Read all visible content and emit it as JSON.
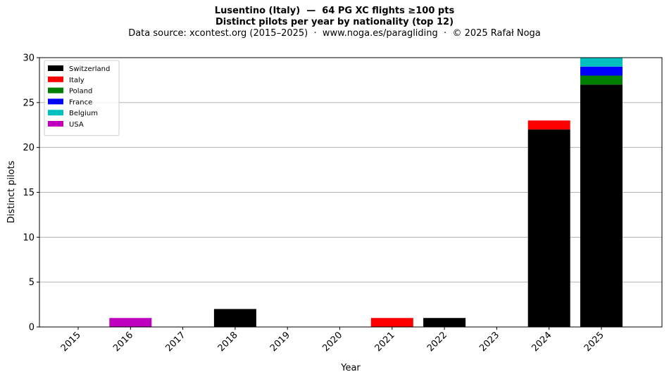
{
  "chart_data": {
    "type": "bar",
    "stacked": true,
    "title": "Lusentino (Italy)  —  64 PG XC flights ≥100 pts",
    "title_line2": "Distinct pilots per year by nationality (top 12)",
    "subtitle": "Data source: xcontest.org (2015–2025)  ·  www.noga.es/paragliding  ·  © 2025 Rafał Noga",
    "xlabel": "Year",
    "ylabel": "Distinct pilots",
    "ylim": [
      0,
      30
    ],
    "yticks": [
      0,
      5,
      10,
      15,
      20,
      25,
      30
    ],
    "grid": "y",
    "legend_position": "top-left",
    "categories": [
      "2015",
      "2016",
      "2017",
      "2018",
      "2019",
      "2020",
      "2021",
      "2022",
      "2023",
      "2024",
      "2025"
    ],
    "series": [
      {
        "name": "Switzerland",
        "color": "#000000",
        "values": [
          0,
          0,
          0,
          2,
          0,
          0,
          0,
          1,
          0,
          22,
          27
        ]
      },
      {
        "name": "Italy",
        "color": "#ff0000",
        "values": [
          0,
          0,
          0,
          0,
          0,
          0,
          1,
          0,
          0,
          1,
          0
        ]
      },
      {
        "name": "Poland",
        "color": "#008000",
        "values": [
          0,
          0,
          0,
          0,
          0,
          0,
          0,
          0,
          0,
          0,
          1
        ]
      },
      {
        "name": "France",
        "color": "#0000ff",
        "values": [
          0,
          0,
          0,
          0,
          0,
          0,
          0,
          0,
          0,
          0,
          1
        ]
      },
      {
        "name": "Belgium",
        "color": "#00bfbf",
        "values": [
          0,
          0,
          0,
          0,
          0,
          0,
          0,
          0,
          0,
          0,
          1
        ]
      },
      {
        "name": "USA",
        "color": "#bf00bf",
        "values": [
          0,
          1,
          0,
          0,
          0,
          0,
          0,
          0,
          0,
          0,
          0
        ]
      }
    ]
  }
}
